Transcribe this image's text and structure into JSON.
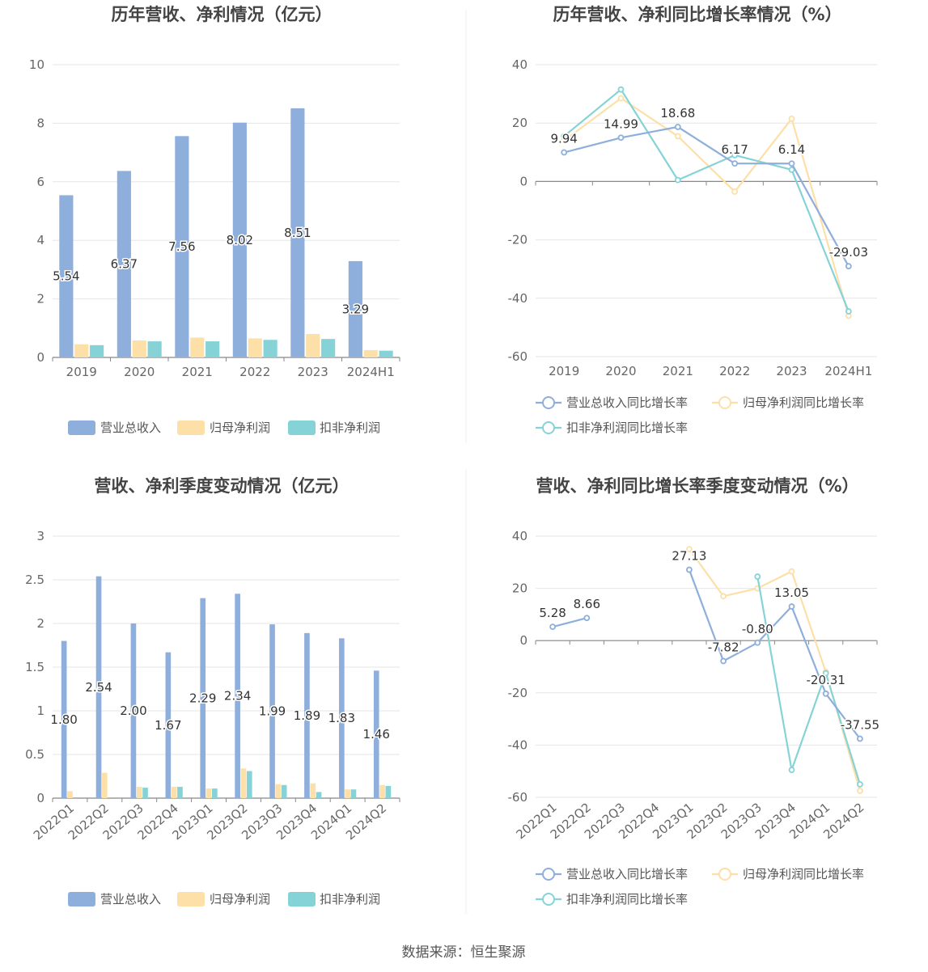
{
  "source": "数据来源：恒生聚源",
  "chart_data": [
    {
      "type": "bar",
      "title": "历年营收、净利情况（亿元）",
      "categories": [
        "2019",
        "2020",
        "2021",
        "2022",
        "2023",
        "2024H1"
      ],
      "ylim": [
        0,
        10
      ],
      "yticks": [
        0,
        2,
        4,
        6,
        8,
        10
      ],
      "grid": true,
      "legend_position": "bottom",
      "series": [
        {
          "name": "营业总收入",
          "color": "#8eaedc",
          "values": [
            5.54,
            6.37,
            7.56,
            8.02,
            8.51,
            3.29
          ],
          "labels": [
            "5.54",
            "6.37",
            "7.56",
            "8.02",
            "8.51",
            "3.29"
          ]
        },
        {
          "name": "归母净利润",
          "color": "#fddfa8",
          "values": [
            0.45,
            0.58,
            0.68,
            0.65,
            0.8,
            0.25
          ]
        },
        {
          "name": "扣非净利润",
          "color": "#86d3d7",
          "values": [
            0.42,
            0.55,
            0.55,
            0.6,
            0.63,
            0.23
          ]
        }
      ]
    },
    {
      "type": "line",
      "title": "历年营收、净利同比增长率情况（%）",
      "categories": [
        "2019",
        "2020",
        "2021",
        "2022",
        "2023",
        "2024H1"
      ],
      "ylim": [
        -60,
        40
      ],
      "yticks": [
        -60,
        -40,
        -20,
        0,
        20,
        40
      ],
      "grid": true,
      "legend_position": "bottom",
      "series": [
        {
          "name": "营业总收入同比增长率",
          "color": "#8eaedc",
          "values": [
            9.94,
            14.99,
            18.68,
            6.17,
            6.14,
            -29.03
          ],
          "labels": [
            "9.94",
            "14.99",
            "18.68",
            "6.17",
            "6.14",
            "-29.03"
          ]
        },
        {
          "name": "归母净利润同比增长率",
          "color": "#fddfa8",
          "values": [
            14,
            28.5,
            15.5,
            -3.5,
            21.5,
            -46
          ]
        },
        {
          "name": "扣非净利润同比增长率",
          "color": "#86d3d7",
          "values": [
            15.5,
            31.5,
            0.5,
            9,
            4,
            -44.5
          ]
        }
      ]
    },
    {
      "type": "bar",
      "title": "营收、净利季度变动情况（亿元）",
      "categories": [
        "2022Q1",
        "2022Q2",
        "2022Q3",
        "2022Q4",
        "2023Q1",
        "2023Q2",
        "2023Q3",
        "2023Q4",
        "2024Q1",
        "2024Q2"
      ],
      "ylim": [
        0,
        3
      ],
      "yticks": [
        0,
        0.5,
        1,
        1.5,
        2,
        2.5,
        3
      ],
      "grid": true,
      "legend_position": "bottom",
      "series": [
        {
          "name": "营业总收入",
          "color": "#8eaedc",
          "values": [
            1.8,
            2.54,
            2.0,
            1.67,
            2.29,
            2.34,
            1.99,
            1.89,
            1.83,
            1.46
          ],
          "labels": [
            "1.80",
            "2.54",
            "2.00",
            "1.67",
            "2.29",
            "2.34",
            "1.99",
            "1.89",
            "1.83",
            "1.46"
          ]
        },
        {
          "name": "归母净利润",
          "color": "#fddfa8",
          "values": [
            0.08,
            0.29,
            0.13,
            0.13,
            0.11,
            0.34,
            0.16,
            0.17,
            0.1,
            0.15
          ]
        },
        {
          "name": "扣非净利润",
          "color": "#86d3d7",
          "values": [
            null,
            null,
            0.12,
            0.13,
            0.11,
            0.31,
            0.15,
            0.07,
            0.1,
            0.14
          ]
        }
      ]
    },
    {
      "type": "line",
      "title": "营收、净利同比增长率季度变动情况（%）",
      "categories": [
        "2022Q1",
        "2022Q2",
        "2022Q3",
        "2022Q4",
        "2023Q1",
        "2023Q2",
        "2023Q3",
        "2023Q4",
        "2024Q1",
        "2024Q2"
      ],
      "ylim": [
        -60,
        40
      ],
      "yticks": [
        -60,
        -40,
        -20,
        0,
        20,
        40
      ],
      "grid": true,
      "legend_position": "bottom",
      "series": [
        {
          "name": "营业总收入同比增长率",
          "color": "#8eaedc",
          "values": [
            5.28,
            8.66,
            null,
            null,
            27.13,
            -7.82,
            -0.8,
            13.05,
            -20.31,
            -37.55
          ],
          "labels": [
            "5.28",
            "8.66",
            null,
            null,
            "27.13",
            "-7.82",
            "-0.80",
            "13.05",
            "-20.31",
            "-37.55"
          ]
        },
        {
          "name": "归母净利润同比增长率",
          "color": "#fddfa8",
          "values": [
            null,
            null,
            null,
            null,
            35,
            17,
            20,
            26.5,
            -12,
            -57.5
          ]
        },
        {
          "name": "扣非净利润同比增长率",
          "color": "#86d3d7",
          "values": [
            null,
            null,
            null,
            null,
            null,
            null,
            24.5,
            -49.5,
            -12.5,
            -55
          ]
        }
      ]
    }
  ]
}
